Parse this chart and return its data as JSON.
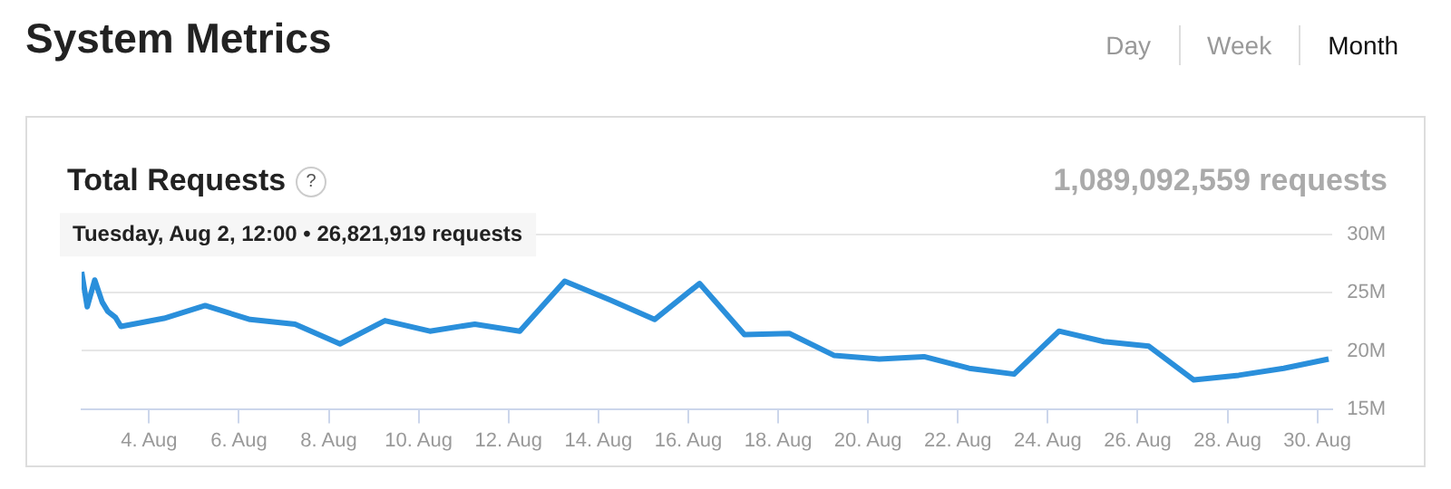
{
  "chart_data": {
    "type": "line",
    "title": "System Metrics",
    "subtitle": "Total Requests",
    "annotations": [
      "1,089,092,559 requests",
      "Day",
      "Week",
      "Month",
      "?",
      "Tuesday, Aug 2, 12:00 • 26,821,919 requests"
    ],
    "x": [
      "--08-02T12:00",
      "--08-02T15:00",
      "--08-02T19:00",
      "--08-02T23:00",
      "--08-03T02:00",
      "--08-03T06:00",
      "--08-03T09:00",
      "--08-04T08:00",
      "--08-05T06:00",
      "--08-06T06:00",
      "--08-07T06:00",
      "--08-08T06:00",
      "--08-09T06:00",
      "--08-10T06:00",
      "--08-11T06:00",
      "--08-12T06:00",
      "--08-13T06:00",
      "--08-14T06:00",
      "--08-15T06:00",
      "--08-16T06:00",
      "--08-17T06:00",
      "--08-18T06:00",
      "--08-19T06:00",
      "--08-20T06:00",
      "--08-21T06:00",
      "--08-22T06:00",
      "--08-23T06:00",
      "--08-24T06:00",
      "--08-25T06:00",
      "--08-26T06:00",
      "--08-27T06:00",
      "--08-28T06:00",
      "--08-29T06:00",
      "--08-30T06:00"
    ],
    "series": [
      {
        "color": "#2a8fdb",
        "values": [
          26.8,
          23.8,
          26.1,
          24.2,
          23.4,
          22.9,
          22.1,
          22.8,
          23.9,
          22.7,
          22.3,
          20.6,
          22.6,
          21.7,
          22.3,
          21.7,
          26.0,
          24.4,
          22.7,
          25.8,
          21.4,
          21.5,
          19.6,
          19.3,
          19.5,
          18.5,
          18.0,
          21.7,
          20.8,
          20.4,
          17.5,
          17.9,
          18.5,
          19.3
        ]
      }
    ],
    "xlim": [
      "--08-02T12:00",
      "--08-30T08:00"
    ],
    "xticks": [
      {
        "value": "--08-04",
        "label": "4. Aug"
      },
      {
        "value": "--08-06",
        "label": "6. Aug"
      },
      {
        "value": "--08-08",
        "label": "8. Aug"
      },
      {
        "value": "--08-10",
        "label": "10. Aug"
      },
      {
        "value": "--08-12",
        "label": "12. Aug"
      },
      {
        "value": "--08-14",
        "label": "14. Aug"
      },
      {
        "value": "--08-16",
        "label": "16. Aug"
      },
      {
        "value": "--08-18",
        "label": "18. Aug"
      },
      {
        "value": "--08-20",
        "label": "20. Aug"
      },
      {
        "value": "--08-22",
        "label": "22. Aug"
      },
      {
        "value": "--08-24",
        "label": "24. Aug"
      },
      {
        "value": "--08-26",
        "label": "26. Aug"
      },
      {
        "value": "--08-28",
        "label": "28. Aug"
      },
      {
        "value": "--08-30",
        "label": "30. Aug"
      }
    ],
    "ylim": [
      15,
      30
    ],
    "yticks": [
      {
        "value": 15,
        "label": "15M"
      },
      {
        "value": 20,
        "label": "20M"
      },
      {
        "value": 25,
        "label": "25M"
      },
      {
        "value": 30,
        "label": "30M"
      }
    ],
    "grid": "y",
    "legend": false,
    "marker": "none",
    "line_style": "solid"
  }
}
